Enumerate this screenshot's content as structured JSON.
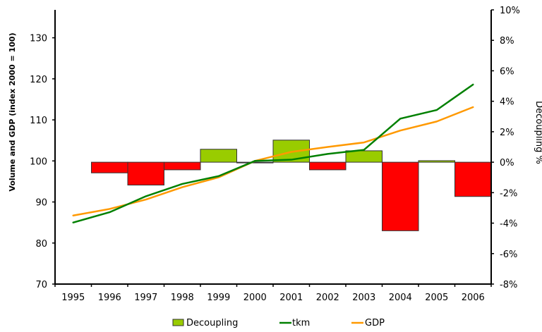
{
  "chart_data": {
    "type": "bar+line",
    "categories": [
      "1995",
      "1996",
      "1997",
      "1998",
      "1999",
      "2000",
      "2001",
      "2002",
      "2003",
      "2004",
      "2005",
      "2006"
    ],
    "left_axis": {
      "label": "Volume and GDP (index 2000 = 100)",
      "range": [
        70,
        136.8
      ],
      "ticks": [
        70,
        80,
        90,
        100,
        110,
        120,
        130
      ],
      "tick_labels": [
        "70",
        "80",
        "90",
        "100",
        "110",
        "120",
        "130"
      ]
    },
    "right_axis": {
      "label": "Decoupling %",
      "range": [
        -8,
        10
      ],
      "ticks": [
        -8,
        -6,
        -4,
        -2,
        0,
        2,
        4,
        6,
        8,
        10
      ],
      "tick_labels": [
        "-8%",
        "-6%",
        "-4%",
        "-2%",
        "0%",
        "2%",
        "4%",
        "6%",
        "8%",
        "10%"
      ]
    },
    "series": [
      {
        "name": "Decoupling",
        "type": "bar",
        "axis": "right",
        "values": [
          null,
          -0.7,
          -1.5,
          -0.5,
          0.85,
          0.0,
          1.45,
          -0.5,
          0.75,
          -4.5,
          0.1,
          -2.25
        ],
        "positive_color": "#99cc00",
        "negative_color": "#ff0000"
      },
      {
        "name": "tkm",
        "type": "line",
        "axis": "left",
        "values": [
          85.0,
          87.5,
          91.4,
          94.4,
          96.3,
          100.0,
          100.3,
          101.7,
          102.7,
          110.3,
          112.4,
          118.6
        ],
        "color": "#008000"
      },
      {
        "name": "GDP",
        "type": "line",
        "axis": "left",
        "values": [
          86.7,
          88.3,
          90.6,
          93.6,
          96.0,
          100.0,
          102.2,
          103.4,
          104.5,
          107.4,
          109.6,
          113.1
        ],
        "color": "#ff9900"
      }
    ],
    "legend": {
      "position": "bottom",
      "entries": [
        "Decoupling",
        "tkm",
        "GDP"
      ]
    },
    "grid": false
  }
}
